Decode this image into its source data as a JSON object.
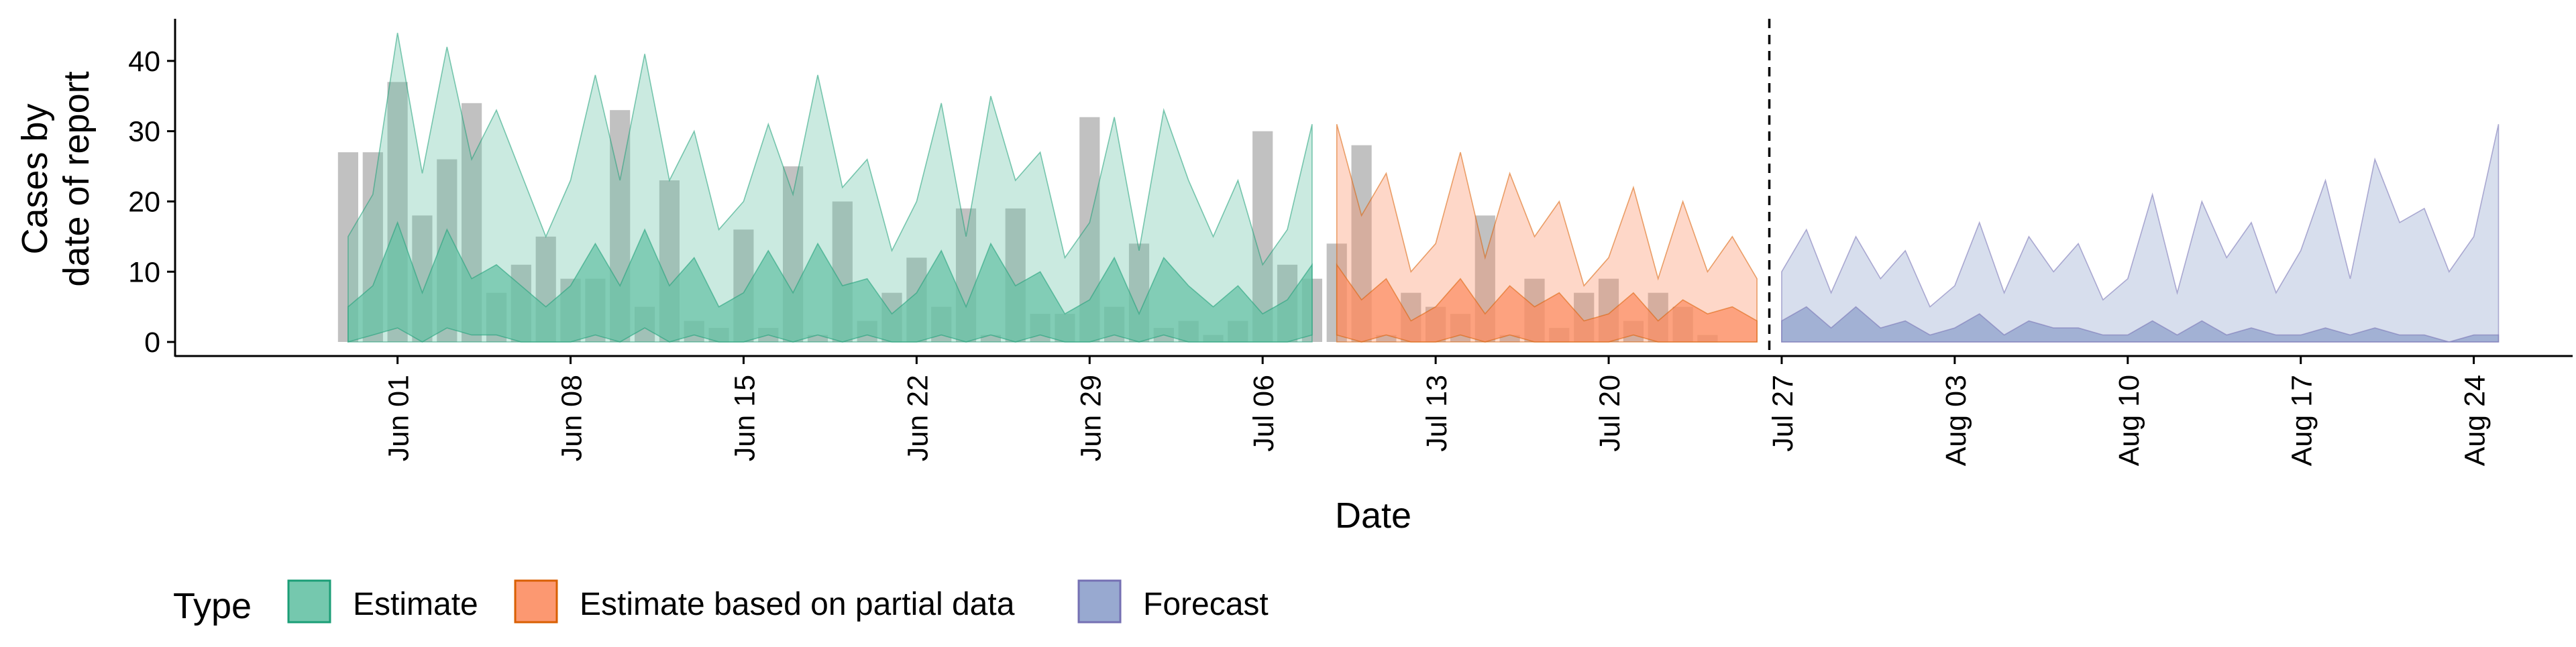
{
  "chart_data": {
    "type": "area",
    "title": "",
    "xlabel": "Date",
    "ylabel_lines": [
      "Cases by",
      "date of report"
    ],
    "y_ticks": [
      0,
      10,
      20,
      30,
      40
    ],
    "ylim": [
      -2,
      46
    ],
    "xlim": [
      "2020-05-23",
      "2020-08-28"
    ],
    "x_ticks": [
      {
        "date": "2020-06-01",
        "label": "Jun 01"
      },
      {
        "date": "2020-06-08",
        "label": "Jun 08"
      },
      {
        "date": "2020-06-15",
        "label": "Jun 15"
      },
      {
        "date": "2020-06-22",
        "label": "Jun 22"
      },
      {
        "date": "2020-06-29",
        "label": "Jun 29"
      },
      {
        "date": "2020-07-06",
        "label": "Jul 06"
      },
      {
        "date": "2020-07-13",
        "label": "Jul 13"
      },
      {
        "date": "2020-07-20",
        "label": "Jul 20"
      },
      {
        "date": "2020-07-27",
        "label": "Jul 27"
      },
      {
        "date": "2020-08-03",
        "label": "Aug 03"
      },
      {
        "date": "2020-08-10",
        "label": "Aug 10"
      },
      {
        "date": "2020-08-17",
        "label": "Aug 17"
      },
      {
        "date": "2020-08-24",
        "label": "Aug 24"
      }
    ],
    "forecast_cutoff": "2020-07-26",
    "legend": {
      "title": "Type",
      "position": "bottom",
      "entries": [
        {
          "label": "Estimate",
          "fill": "#66c2a5",
          "stroke": "#1b9e77"
        },
        {
          "label": "Estimate based on partial data",
          "fill": "#fc8d62",
          "stroke": "#d95f02"
        },
        {
          "label": "Forecast",
          "fill": "#8da0cb",
          "stroke": "#7570b3"
        }
      ]
    },
    "reported_cases": {
      "color": "#a9a9a9",
      "start": "2020-05-30",
      "values": [
        27,
        27,
        37,
        18,
        26,
        34,
        7,
        11,
        15,
        9,
        9,
        33,
        5,
        23,
        3,
        2,
        16,
        2,
        25,
        1,
        20,
        3,
        7,
        12,
        5,
        19,
        1,
        19,
        4,
        4,
        32,
        5,
        14,
        2,
        3,
        1,
        3,
        30,
        11,
        9,
        14,
        28,
        1,
        7,
        5,
        4,
        18,
        1,
        9,
        2,
        7,
        9,
        3,
        7,
        5,
        1
      ]
    },
    "series": [
      {
        "name": "Estimate",
        "start": "2020-05-30",
        "fill": "#66c2a5",
        "stroke": "#1b9e77",
        "outer_upper": [
          15,
          21,
          44,
          24,
          42,
          26,
          33,
          24,
          15,
          23,
          38,
          23,
          41,
          23,
          30,
          16,
          20,
          31,
          21,
          38,
          22,
          26,
          13,
          20,
          34,
          15,
          35,
          23,
          27,
          12,
          17,
          32,
          13,
          33,
          23,
          15,
          23,
          11,
          16,
          31
        ],
        "outer_lower": [
          0,
          0,
          0,
          0,
          0,
          0,
          0,
          0,
          0,
          0,
          0,
          0,
          0,
          0,
          0,
          0,
          0,
          0,
          0,
          0,
          0,
          0,
          0,
          0,
          0,
          0,
          0,
          0,
          0,
          0,
          0,
          0,
          0,
          0,
          0,
          0,
          0,
          0,
          0,
          0
        ],
        "inner_upper": [
          5,
          8,
          17,
          7,
          16,
          9,
          11,
          8,
          5,
          8,
          14,
          8,
          16,
          8,
          12,
          5,
          7,
          13,
          7,
          14,
          8,
          9,
          4,
          7,
          13,
          5,
          14,
          8,
          10,
          4,
          6,
          12,
          4,
          12,
          8,
          5,
          8,
          4,
          6,
          11
        ],
        "inner_lower": [
          0,
          1,
          2,
          0,
          2,
          1,
          1,
          0,
          0,
          0,
          1,
          0,
          2,
          0,
          1,
          0,
          0,
          1,
          0,
          1,
          0,
          1,
          0,
          0,
          1,
          0,
          1,
          0,
          1,
          0,
          0,
          1,
          0,
          1,
          0,
          0,
          0,
          0,
          0,
          1
        ]
      },
      {
        "name": "Estimate based on partial data",
        "start": "2020-07-09",
        "fill": "#fc8d62",
        "stroke": "#d95f02",
        "outer_upper": [
          31,
          18,
          24,
          10,
          14,
          27,
          12,
          24,
          15,
          20,
          8,
          12,
          22,
          9,
          20,
          10,
          15,
          9
        ],
        "outer_lower": [
          0,
          0,
          0,
          0,
          0,
          0,
          0,
          0,
          0,
          0,
          0,
          0,
          0,
          0,
          0,
          0,
          0,
          0
        ],
        "inner_upper": [
          11,
          6,
          9,
          3,
          5,
          9,
          4,
          8,
          5,
          7,
          3,
          4,
          7,
          3,
          6,
          4,
          5,
          3
        ],
        "inner_lower": [
          1,
          0,
          1,
          0,
          0,
          1,
          0,
          1,
          0,
          0,
          0,
          0,
          1,
          0,
          0,
          0,
          0,
          0
        ]
      },
      {
        "name": "Forecast",
        "start": "2020-07-27",
        "fill": "#8da0cb",
        "stroke": "#7570b3",
        "outer_upper": [
          10,
          16,
          7,
          15,
          9,
          13,
          5,
          8,
          17,
          7,
          15,
          10,
          14,
          6,
          9,
          21,
          7,
          20,
          12,
          17,
          7,
          13,
          23,
          9,
          26,
          17,
          19,
          10,
          15,
          31
        ],
        "outer_lower": [
          0,
          0,
          0,
          0,
          0,
          0,
          0,
          0,
          0,
          0,
          0,
          0,
          0,
          0,
          0,
          0,
          0,
          0,
          0,
          0,
          0,
          0,
          0,
          0,
          0,
          0,
          0,
          0,
          0,
          0
        ],
        "inner_upper": [
          3,
          5,
          2,
          5,
          2,
          3,
          1,
          2,
          4,
          1,
          3,
          2,
          2,
          1,
          1,
          3,
          1,
          3,
          1,
          2,
          1,
          1,
          2,
          1,
          2,
          1,
          1,
          0,
          1,
          1
        ],
        "inner_lower": [
          0,
          0,
          0,
          0,
          0,
          0,
          0,
          0,
          0,
          0,
          0,
          0,
          0,
          0,
          0,
          0,
          0,
          0,
          0,
          0,
          0,
          0,
          0,
          0,
          0,
          0,
          0,
          0,
          0,
          0
        ]
      }
    ]
  }
}
